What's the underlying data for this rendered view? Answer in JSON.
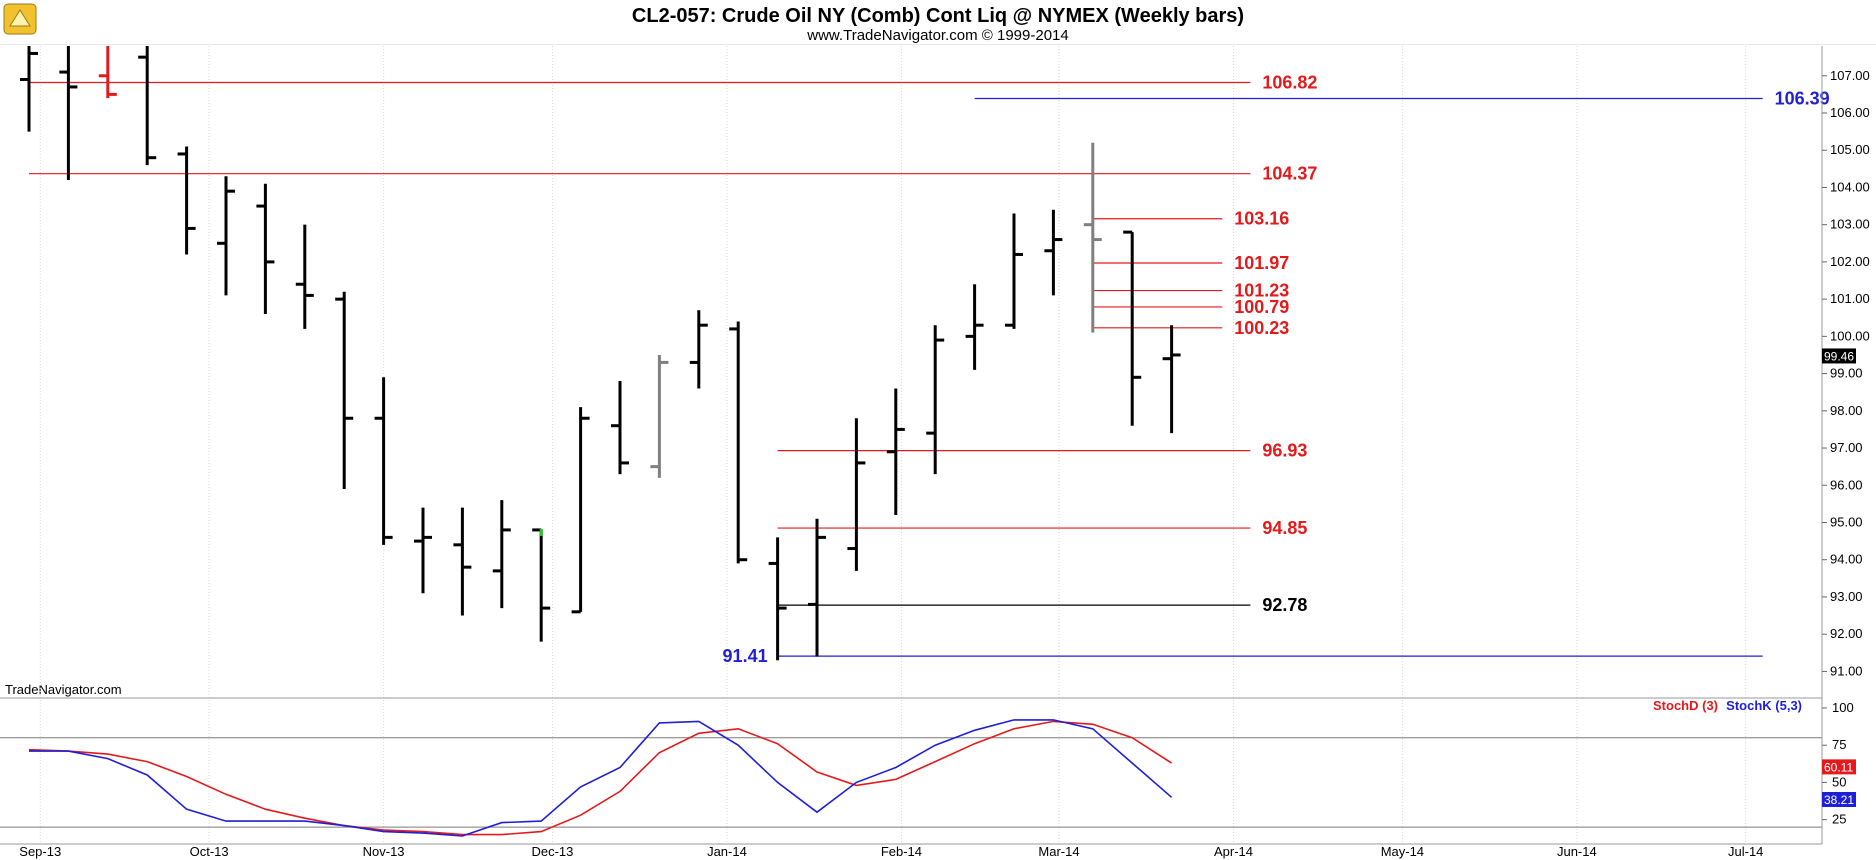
{
  "header": {
    "title": "CL2-057:  Crude Oil NY (Comb) Cont Liq @ NYMEX  (Weekly bars)",
    "subtitle": "www.TradeNavigator.com © 1999-2014"
  },
  "watermark": "TradeNavigator.com",
  "colors": {
    "support_resistance": "#e31a1c",
    "blue_level": "#1f1fd6",
    "gray_bar": "#808080",
    "stoch_d": "#e31a1c",
    "stoch_k": "#1f1fd6"
  },
  "chart_data": [
    {
      "type": "ohlc",
      "title": "CL2-057:  Crude Oil NY (Comb) Cont Liq @ NYMEX  (Weekly bars)",
      "ylim": [
        90.5,
        107.8
      ],
      "y_ticks": [
        "107.00",
        "106.00",
        "105.00",
        "104.00",
        "103.00",
        "102.00",
        "101.00",
        "100.00",
        "99.00",
        "98.00",
        "97.00",
        "96.00",
        "95.00",
        "94.00",
        "93.00",
        "92.00",
        "91.00"
      ],
      "x_tick_labels": [
        "Sep-13",
        "Oct-13",
        "Nov-13",
        "Dec-13",
        "Jan-14",
        "Feb-14",
        "Mar-14",
        "Apr-14",
        "May-14",
        "Jun-14",
        "Jul-14"
      ],
      "last_price": "99.46",
      "bars": [
        {
          "date": "2013-08-30",
          "open": 106.9,
          "high": 107.8,
          "low": 105.5,
          "close": 107.6
        },
        {
          "date": "2013-09-06",
          "open": 107.1,
          "high": 107.8,
          "low": 104.2,
          "close": 106.7
        },
        {
          "date": "2013-09-13",
          "open": 107.0,
          "high": 107.8,
          "low": 106.4,
          "close": 106.5,
          "color": "red"
        },
        {
          "date": "2013-09-20",
          "open": 107.5,
          "high": 107.8,
          "low": 104.6,
          "close": 104.8
        },
        {
          "date": "2013-09-27",
          "open": 104.9,
          "high": 105.1,
          "low": 102.2,
          "close": 102.9
        },
        {
          "date": "2013-10-04",
          "open": 102.5,
          "high": 104.3,
          "low": 101.1,
          "close": 103.9
        },
        {
          "date": "2013-10-11",
          "open": 103.5,
          "high": 104.1,
          "low": 100.6,
          "close": 102.0
        },
        {
          "date": "2013-10-18",
          "open": 101.4,
          "high": 103.0,
          "low": 100.2,
          "close": 101.1
        },
        {
          "date": "2013-10-25",
          "open": 101.0,
          "high": 101.2,
          "low": 95.9,
          "close": 97.8
        },
        {
          "date": "2013-11-01",
          "open": 97.8,
          "high": 98.9,
          "low": 94.4,
          "close": 94.6
        },
        {
          "date": "2013-11-08",
          "open": 94.5,
          "high": 95.4,
          "low": 93.1,
          "close": 94.6
        },
        {
          "date": "2013-11-15",
          "open": 94.4,
          "high": 95.4,
          "low": 92.5,
          "close": 93.8
        },
        {
          "date": "2013-11-22",
          "open": 93.7,
          "high": 95.6,
          "low": 92.7,
          "close": 94.8
        },
        {
          "date": "2013-11-29",
          "open": 94.8,
          "high": 94.8,
          "low": 91.8,
          "close": 92.7,
          "high_color": "green"
        },
        {
          "date": "2013-12-06",
          "open": 92.6,
          "high": 98.1,
          "low": 92.6,
          "close": 97.8
        },
        {
          "date": "2013-12-13",
          "open": 97.6,
          "high": 98.8,
          "low": 96.3,
          "close": 96.6
        },
        {
          "date": "2013-12-20",
          "open": 96.5,
          "high": 99.5,
          "low": 96.2,
          "close": 99.3,
          "color": "gray"
        },
        {
          "date": "2013-12-27",
          "open": 99.3,
          "high": 100.7,
          "low": 98.6,
          "close": 100.3
        },
        {
          "date": "2014-01-03",
          "open": 100.2,
          "high": 100.4,
          "low": 93.9,
          "close": 94.0
        },
        {
          "date": "2014-01-10",
          "open": 93.9,
          "high": 94.6,
          "low": 91.3,
          "close": 92.7
        },
        {
          "date": "2014-01-17",
          "open": 92.8,
          "high": 95.1,
          "low": 91.4,
          "close": 94.6
        },
        {
          "date": "2014-01-24",
          "open": 94.3,
          "high": 97.8,
          "low": 93.7,
          "close": 96.6
        },
        {
          "date": "2014-01-31",
          "open": 96.9,
          "high": 98.6,
          "low": 95.2,
          "close": 97.5
        },
        {
          "date": "2014-02-07",
          "open": 97.4,
          "high": 100.3,
          "low": 96.3,
          "close": 99.9
        },
        {
          "date": "2014-02-14",
          "open": 100.0,
          "high": 101.4,
          "low": 99.1,
          "close": 100.3
        },
        {
          "date": "2014-02-21",
          "open": 100.3,
          "high": 103.3,
          "low": 100.2,
          "close": 102.2
        },
        {
          "date": "2014-02-28",
          "open": 102.3,
          "high": 103.4,
          "low": 101.1,
          "close": 102.6
        },
        {
          "date": "2014-03-07",
          "open": 103.0,
          "high": 105.2,
          "low": 100.1,
          "close": 102.6,
          "color": "gray"
        },
        {
          "date": "2014-03-14",
          "open": 102.8,
          "high": 102.8,
          "low": 97.6,
          "close": 98.9
        },
        {
          "date": "2014-03-21",
          "open": 99.4,
          "high": 100.3,
          "low": 97.4,
          "close": 99.5
        }
      ],
      "levels": [
        {
          "value": 106.82,
          "label": "106.82",
          "color": "red",
          "from": "2013-08-30",
          "to": "2014-04-04"
        },
        {
          "value": 106.39,
          "label": "106.39",
          "color": "blue",
          "from": "2014-02-14",
          "to": "2014-07-04"
        },
        {
          "value": 104.37,
          "label": "104.37",
          "color": "red",
          "from": "2013-08-30",
          "to": "2014-04-04"
        },
        {
          "value": 103.16,
          "label": "103.16",
          "color": "red",
          "from": "2014-03-07",
          "to": "2014-03-30"
        },
        {
          "value": 101.97,
          "label": "101.97",
          "color": "red",
          "from": "2014-03-07",
          "to": "2014-03-30"
        },
        {
          "value": 101.23,
          "label": "101.23",
          "color": "red",
          "from": "2014-03-07",
          "to": "2014-03-30"
        },
        {
          "value": 100.79,
          "label": "100.79",
          "color": "red",
          "from": "2014-03-07",
          "to": "2014-03-30"
        },
        {
          "value": 100.23,
          "label": "100.23",
          "color": "red",
          "from": "2014-03-07",
          "to": "2014-03-30"
        },
        {
          "value": 96.93,
          "label": "96.93",
          "color": "red",
          "from": "2014-01-10",
          "to": "2014-04-04"
        },
        {
          "value": 94.85,
          "label": "94.85",
          "color": "red",
          "from": "2014-01-10",
          "to": "2014-04-04"
        },
        {
          "value": 92.78,
          "label": "92.78",
          "color": "black",
          "from": "2014-01-10",
          "to": "2014-04-04"
        },
        {
          "value": 91.41,
          "label": "91.41",
          "color": "blue",
          "from": "2014-01-10",
          "to": "2014-07-04"
        }
      ]
    },
    {
      "type": "line",
      "legend": [
        "StochD (3)",
        "StochK (5,3)"
      ],
      "ylim": [
        10,
        104
      ],
      "y_ticks": [
        "100",
        "75",
        "50",
        "25"
      ],
      "reference_lines": [
        80,
        20
      ],
      "last_values": {
        "StochD": "60.11",
        "StochK": "38.21"
      },
      "series": [
        {
          "name": "StochD (3)",
          "color": "red",
          "values": [
            [
              "2013-08-30",
              72
            ],
            [
              "2013-09-06",
              71
            ],
            [
              "2013-09-13",
              69
            ],
            [
              "2013-09-20",
              64
            ],
            [
              "2013-09-27",
              54
            ],
            [
              "2013-10-04",
              42
            ],
            [
              "2013-10-11",
              32
            ],
            [
              "2013-10-18",
              26
            ],
            [
              "2013-10-25",
              21
            ],
            [
              "2013-11-01",
              18
            ],
            [
              "2013-11-08",
              17
            ],
            [
              "2013-11-15",
              15
            ],
            [
              "2013-11-22",
              15
            ],
            [
              "2013-11-29",
              17
            ],
            [
              "2013-12-06",
              28
            ],
            [
              "2013-12-13",
              44
            ],
            [
              "2013-12-20",
              70
            ],
            [
              "2013-12-27",
              83
            ],
            [
              "2014-01-03",
              86
            ],
            [
              "2014-01-10",
              76
            ],
            [
              "2014-01-17",
              57
            ],
            [
              "2014-01-24",
              48
            ],
            [
              "2014-01-31",
              52
            ],
            [
              "2014-02-07",
              64
            ],
            [
              "2014-02-14",
              76
            ],
            [
              "2014-02-21",
              86
            ],
            [
              "2014-02-28",
              91
            ],
            [
              "2014-03-07",
              89
            ],
            [
              "2014-03-14",
              80
            ],
            [
              "2014-03-21",
              63
            ]
          ]
        },
        {
          "name": "StochK (5,3)",
          "color": "blue",
          "values": [
            [
              "2013-08-30",
              71
            ],
            [
              "2013-09-06",
              71
            ],
            [
              "2013-09-13",
              66
            ],
            [
              "2013-09-20",
              55
            ],
            [
              "2013-09-27",
              32
            ],
            [
              "2013-10-04",
              24
            ],
            [
              "2013-10-11",
              24
            ],
            [
              "2013-10-18",
              24
            ],
            [
              "2013-10-25",
              21
            ],
            [
              "2013-11-01",
              17
            ],
            [
              "2013-11-08",
              16
            ],
            [
              "2013-11-15",
              14
            ],
            [
              "2013-11-22",
              23
            ],
            [
              "2013-11-29",
              24
            ],
            [
              "2013-12-06",
              47
            ],
            [
              "2013-12-13",
              60
            ],
            [
              "2013-12-20",
              90
            ],
            [
              "2013-12-27",
              91
            ],
            [
              "2014-01-03",
              75
            ],
            [
              "2014-01-10",
              50
            ],
            [
              "2014-01-17",
              30
            ],
            [
              "2014-01-24",
              50
            ],
            [
              "2014-01-31",
              60
            ],
            [
              "2014-02-07",
              75
            ],
            [
              "2014-02-14",
              85
            ],
            [
              "2014-02-21",
              92
            ],
            [
              "2014-02-28",
              92
            ],
            [
              "2014-03-07",
              86
            ],
            [
              "2014-03-14",
              63
            ],
            [
              "2014-03-21",
              40
            ]
          ]
        }
      ]
    }
  ]
}
